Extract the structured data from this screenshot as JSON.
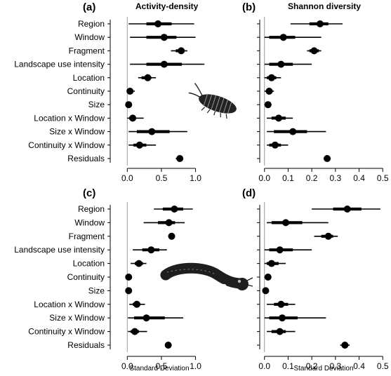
{
  "figure": {
    "panels": [
      {
        "letter": "(a)",
        "title": "Activity-density",
        "xlabel": ""
      },
      {
        "letter": "(b)",
        "title": "Shannon diversity",
        "xlabel": ""
      },
      {
        "letter": "(c)",
        "title": "",
        "xlabel": "Standard Deviation"
      },
      {
        "letter": "(d)",
        "title": "",
        "xlabel": "Standard Deviation"
      }
    ]
  },
  "chart_data": [
    {
      "type": "scatter",
      "panel": "(a)",
      "title": "Activity-density",
      "xlabel": "",
      "xlim": [
        -0.25,
        1.2
      ],
      "xticks": [
        0.0,
        0.5,
        1.0
      ],
      "xtick_labels": [
        "0.0",
        "0.5",
        "1.0"
      ],
      "reference_line_x": 0,
      "categories": [
        "Region",
        "Window",
        "Fragment",
        "Landscape use intensity",
        "Location",
        "Continuity",
        "Size",
        "Location x Window",
        "Size x Window",
        "Continuity x Window",
        "Residuals"
      ],
      "series": [
        {
          "name": "",
          "point": [
            0.45,
            0.54,
            0.79,
            0.54,
            0.3,
            0.04,
            0.02,
            0.08,
            0.36,
            0.18,
            0.77
          ],
          "ci50": [
            [
              0.28,
              0.65
            ],
            [
              0.28,
              0.72
            ],
            [
              0.71,
              0.84
            ],
            [
              0.28,
              0.8
            ],
            [
              0.21,
              0.35
            ],
            [
              0.02,
              0.07
            ],
            [
              0.01,
              0.04
            ],
            [
              0.03,
              0.12
            ],
            [
              0.14,
              0.62
            ],
            [
              0.09,
              0.28
            ],
            [
              0.73,
              0.8
            ]
          ],
          "ci95": [
            [
              0.02,
              0.98
            ],
            [
              0.04,
              1.0
            ],
            [
              0.64,
              0.88
            ],
            [
              0.04,
              1.13
            ],
            [
              0.16,
              0.42
            ],
            [
              0.0,
              0.11
            ],
            [
              0.0,
              0.07
            ],
            [
              0.0,
              0.24
            ],
            [
              0.02,
              0.88
            ],
            [
              0.02,
              0.42
            ],
            [
              0.71,
              0.82
            ]
          ]
        }
      ]
    },
    {
      "type": "scatter",
      "panel": "(b)",
      "title": "Shannon diversity",
      "xlabel": "",
      "xlim": [
        -0.02,
        0.52
      ],
      "xticks": [
        0.0,
        0.1,
        0.2,
        0.3,
        0.4,
        0.5
      ],
      "xtick_labels": [
        "0.0",
        "0.1",
        "0.2",
        "0.3",
        "0.4",
        "0.5"
      ],
      "reference_line_x": 0,
      "categories": [
        "Region",
        "Window",
        "Fragment",
        "Landscape use intensity",
        "Location",
        "Continuity",
        "Size",
        "Location x Window",
        "Size x Window",
        "Continuity x Window",
        "Residuals"
      ],
      "series": [
        {
          "name": "",
          "point": [
            0.235,
            0.08,
            0.21,
            0.07,
            0.03,
            0.02,
            0.015,
            0.06,
            0.12,
            0.045,
            0.265
          ],
          "ci50": [
            [
              0.19,
              0.27
            ],
            [
              0.02,
              0.13
            ],
            [
              0.19,
              0.23
            ],
            [
              0.02,
              0.12
            ],
            [
              0.01,
              0.05
            ],
            [
              0.01,
              0.03
            ],
            [
              0.01,
              0.02
            ],
            [
              0.03,
              0.09
            ],
            [
              0.04,
              0.18
            ],
            [
              0.02,
              0.07
            ],
            [
              0.255,
              0.275
            ]
          ],
          "ci95": [
            [
              0.11,
              0.33
            ],
            [
              0.0,
              0.24
            ],
            [
              0.18,
              0.24
            ],
            [
              0.0,
              0.2
            ],
            [
              0.0,
              0.07
            ],
            [
              0.0,
              0.04
            ],
            [
              0.0,
              0.03
            ],
            [
              0.01,
              0.12
            ],
            [
              0.01,
              0.26
            ],
            [
              0.01,
              0.1
            ],
            [
              0.25,
              0.28
            ]
          ]
        }
      ]
    },
    {
      "type": "scatter",
      "panel": "(c)",
      "title": "",
      "xlabel": "Standard Deviation",
      "xlim": [
        -0.25,
        1.2
      ],
      "xticks": [
        0.0,
        0.5,
        1.0
      ],
      "xtick_labels": [
        "0.0",
        "0.5",
        "1.0"
      ],
      "reference_line_x": 0,
      "categories": [
        "Region",
        "Window",
        "Fragment",
        "Landscape use intensity",
        "Location",
        "Continuity",
        "Size",
        "Location x Window",
        "Size x Window",
        "Continuity x Window",
        "Residuals"
      ],
      "series": [
        {
          "name": "",
          "point": [
            0.69,
            0.61,
            0.65,
            0.35,
            0.17,
            0.02,
            0.02,
            0.14,
            0.28,
            0.11,
            0.6
          ],
          "ci50": [
            [
              0.52,
              0.82
            ],
            [
              0.45,
              0.7
            ],
            [
              0.62,
              0.68
            ],
            [
              0.22,
              0.47
            ],
            [
              0.11,
              0.23
            ],
            [
              0.01,
              0.03
            ],
            [
              0.01,
              0.03
            ],
            [
              0.08,
              0.19
            ],
            [
              0.1,
              0.55
            ],
            [
              0.05,
              0.17
            ],
            [
              0.57,
              0.62
            ]
          ],
          "ci95": [
            [
              0.39,
              0.96
            ],
            [
              0.24,
              0.84
            ],
            [
              0.6,
              0.7
            ],
            [
              0.08,
              0.58
            ],
            [
              0.05,
              0.28
            ],
            [
              0.0,
              0.05
            ],
            [
              0.0,
              0.04
            ],
            [
              0.03,
              0.26
            ],
            [
              0.01,
              0.82
            ],
            [
              0.01,
              0.29
            ],
            [
              0.56,
              0.63
            ]
          ]
        }
      ]
    },
    {
      "type": "scatter",
      "panel": "(d)",
      "title": "",
      "xlabel": "Standard Deviation",
      "xlim": [
        -0.02,
        0.52
      ],
      "xticks": [
        0.0,
        0.1,
        0.2,
        0.3,
        0.4,
        0.5
      ],
      "xtick_labels": [
        "0.0",
        "0.1",
        "0.2",
        "0.3",
        "0.4",
        "0.5"
      ],
      "reference_line_x": 0,
      "categories": [
        "Region",
        "Window",
        "Fragment",
        "Landscape use intensity",
        "Location",
        "Continuity",
        "Size",
        "Location x Window",
        "Size x Window",
        "Continuity x Window",
        "Residuals"
      ],
      "series": [
        {
          "name": "",
          "point": [
            0.35,
            0.09,
            0.27,
            0.065,
            0.03,
            0.015,
            0.005,
            0.07,
            0.075,
            0.065,
            0.34
          ],
          "ci50": [
            [
              0.29,
              0.41
            ],
            [
              0.03,
              0.16
            ],
            [
              0.24,
              0.29
            ],
            [
              0.02,
              0.12
            ],
            [
              0.01,
              0.06
            ],
            [
              0.005,
              0.02
            ],
            [
              0.0,
              0.01
            ],
            [
              0.04,
              0.1
            ],
            [
              0.02,
              0.14
            ],
            [
              0.03,
              0.09
            ],
            [
              0.33,
              0.35
            ]
          ],
          "ci95": [
            [
              0.2,
              0.49
            ],
            [
              0.01,
              0.27
            ],
            [
              0.21,
              0.31
            ],
            [
              0.0,
              0.2
            ],
            [
              0.0,
              0.09
            ],
            [
              0.0,
              0.02
            ],
            [
              0.0,
              0.015
            ],
            [
              0.01,
              0.13
            ],
            [
              0.0,
              0.26
            ],
            [
              0.01,
              0.13
            ],
            [
              0.32,
              0.36
            ]
          ]
        }
      ]
    }
  ],
  "colors": {
    "marks": "#000000",
    "reference_line": "#9a9a9a",
    "illustration": "#222222"
  },
  "icons": [
    "woodlouse-illustration",
    "millipede-illustration"
  ]
}
